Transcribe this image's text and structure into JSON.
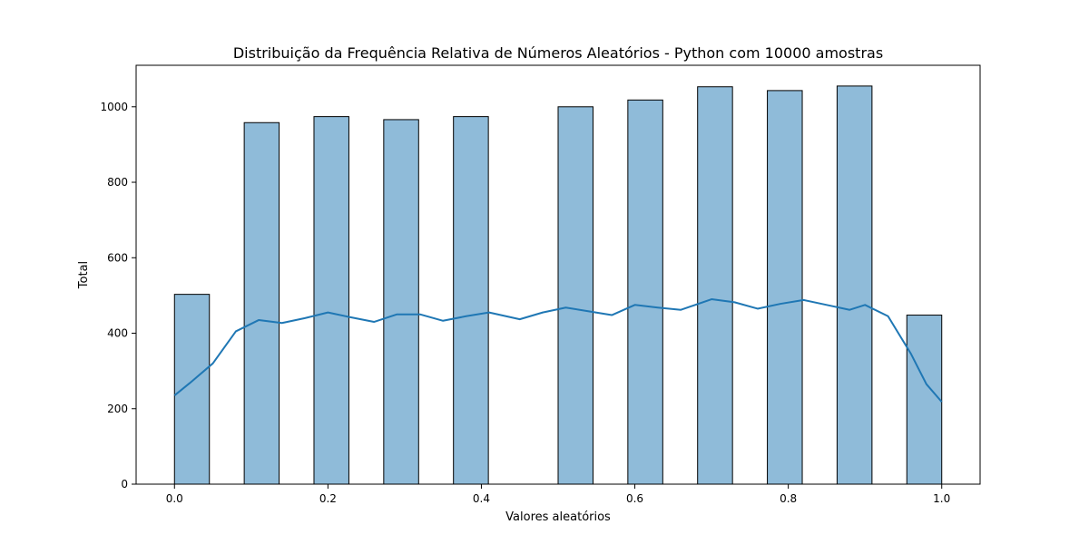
{
  "chart_data": {
    "type": "bar",
    "title": "Distribuição da Frequência Relativa de Números Aleatórios - Python com 10000 amostras",
    "xlabel": "Valores aleatórios",
    "ylabel": "Total",
    "xlim": [
      -0.05,
      1.05
    ],
    "ylim": [
      0,
      1110
    ],
    "x_ticks": [
      0.0,
      0.2,
      0.4,
      0.6,
      0.8,
      1.0
    ],
    "x_tick_labels": [
      "0.0",
      "0.2",
      "0.4",
      "0.6",
      "0.8",
      "1.0"
    ],
    "y_ticks": [
      0,
      200,
      400,
      600,
      800,
      1000
    ],
    "y_tick_labels": [
      "0",
      "200",
      "400",
      "600",
      "800",
      "1000"
    ],
    "bin_edges": [
      0.0,
      0.0455,
      0.0909,
      0.1364,
      0.1818,
      0.2273,
      0.2727,
      0.3182,
      0.3636,
      0.4091,
      0.4545,
      0.5,
      0.5455,
      0.5909,
      0.6364,
      0.6818,
      0.7273,
      0.7727,
      0.8182,
      0.8636,
      0.9091,
      0.9545,
      1.0
    ],
    "counts": [
      503,
      0,
      958,
      0,
      974,
      0,
      966,
      0,
      974,
      0,
      0,
      1000,
      0,
      1018,
      0,
      1053,
      0,
      1043,
      0,
      1055,
      0,
      448
    ],
    "kde": {
      "x": [
        0.0,
        0.02,
        0.05,
        0.08,
        0.11,
        0.14,
        0.17,
        0.2,
        0.23,
        0.26,
        0.29,
        0.32,
        0.35,
        0.38,
        0.41,
        0.45,
        0.48,
        0.51,
        0.54,
        0.57,
        0.6,
        0.63,
        0.66,
        0.7,
        0.73,
        0.76,
        0.79,
        0.82,
        0.85,
        0.88,
        0.9,
        0.93,
        0.96,
        0.98,
        1.0
      ],
      "y": [
        235,
        268,
        320,
        405,
        435,
        427,
        440,
        455,
        442,
        430,
        450,
        450,
        433,
        445,
        455,
        437,
        455,
        468,
        458,
        448,
        475,
        468,
        462,
        490,
        482,
        465,
        478,
        488,
        475,
        462,
        475,
        445,
        345,
        265,
        218
      ]
    },
    "colors": {
      "bar_fill": "#1f77b4",
      "bar_opacity": 0.5,
      "bar_edge": "#000000",
      "kde_line": "#1f77b4"
    },
    "grid": false,
    "legend": "none"
  }
}
